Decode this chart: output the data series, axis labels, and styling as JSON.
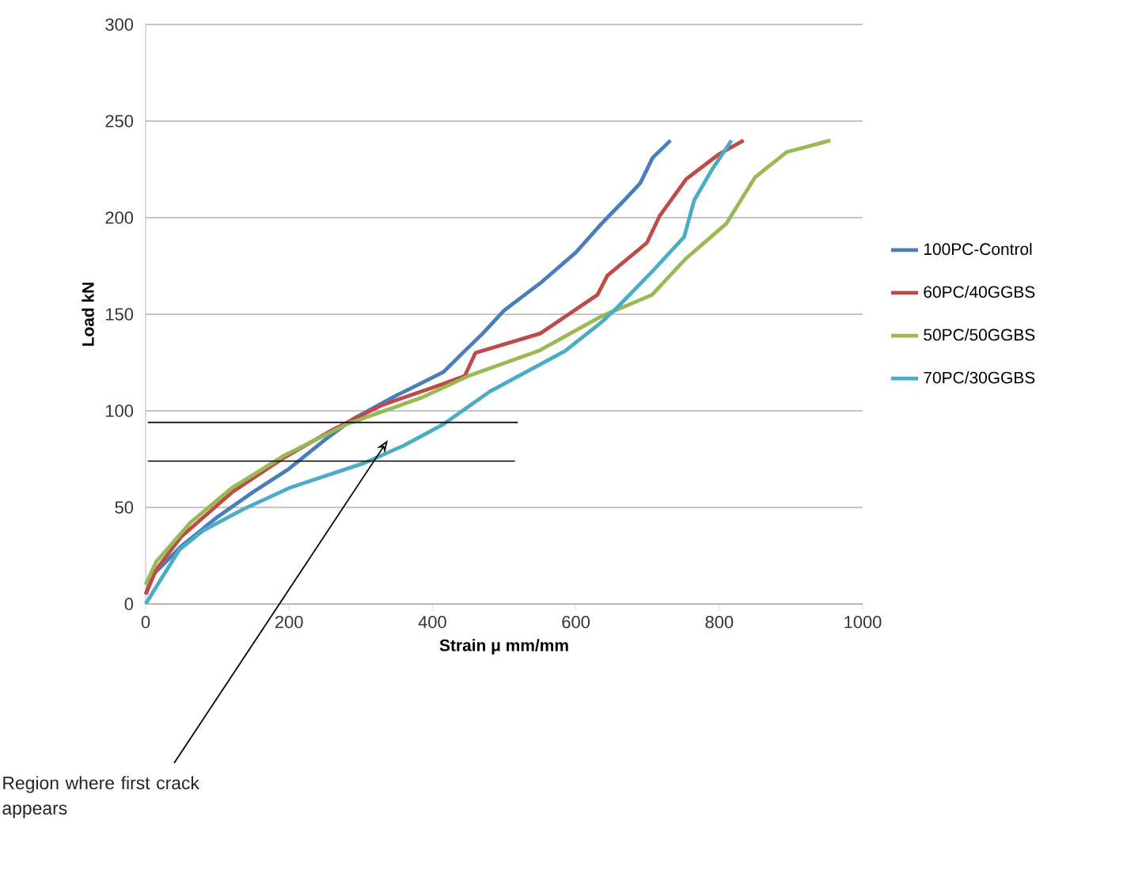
{
  "chart_data": {
    "type": "line",
    "xlabel": "Strain μ mm/mm",
    "ylabel": "Load kN",
    "xlim": [
      0,
      1000
    ],
    "xticks": [
      0,
      200,
      400,
      600,
      800,
      1000
    ],
    "ylim": [
      0,
      300
    ],
    "yticks": [
      0,
      50,
      100,
      150,
      200,
      250,
      300
    ],
    "grid": "y",
    "legend": "right",
    "marker": "none",
    "line_style": "solid",
    "series": [
      {
        "name": "100PC-Control",
        "color": "#4a7ebb",
        "x": [
          0,
          10,
          50,
          100,
          150,
          200,
          250,
          290,
          350,
          415,
          445,
          470,
          500,
          550,
          600,
          636,
          670,
          690,
          707,
          732
        ],
        "values": [
          5,
          15,
          30,
          45,
          58,
          70,
          85,
          96,
          108,
          120,
          131,
          140,
          152,
          166,
          182,
          197,
          210,
          218,
          231,
          240
        ]
      },
      {
        "name": "60PC/40GGBS",
        "color": "#be4b48",
        "x": [
          0,
          15,
          50,
          121,
          194,
          260,
          330,
          400,
          445,
          460,
          550,
          610,
          630,
          644,
          699,
          717,
          754,
          800,
          834
        ],
        "values": [
          5,
          18,
          35,
          58,
          76,
          90,
          103,
          112,
          118,
          130,
          140,
          155,
          160,
          170,
          187,
          201,
          220,
          233,
          240
        ]
      },
      {
        "name": "50PC/50GGBS",
        "color": "#98b954",
        "x": [
          0,
          15,
          62,
          120,
          194,
          280,
          386,
          450,
          548,
          636,
          706,
          754,
          810,
          850,
          894,
          955
        ],
        "values": [
          10,
          22,
          42,
          60,
          77,
          93,
          107,
          118,
          131,
          149,
          160,
          179,
          197,
          221,
          234,
          240
        ]
      },
      {
        "name": "70PC/30GGBS",
        "color": "#4bacc6",
        "x": [
          0,
          20,
          47,
          80,
          136,
          200,
          305,
          360,
          415,
          480,
          585,
          636,
          659,
          706,
          751,
          765,
          790,
          810,
          817
        ],
        "values": [
          0,
          12,
          28,
          38,
          49,
          60,
          73,
          82,
          93,
          110,
          131,
          146,
          154,
          172,
          190,
          209,
          225,
          236,
          240
        ]
      },
      {
        "color": "#000000",
        "x": [
          3,
          519
        ],
        "values": [
          94,
          94
        ]
      },
      {
        "color": "#000000",
        "x": [
          3,
          515
        ],
        "values": [
          74,
          74
        ]
      }
    ],
    "annotations": [
      "Region where first crack appears"
    ]
  }
}
